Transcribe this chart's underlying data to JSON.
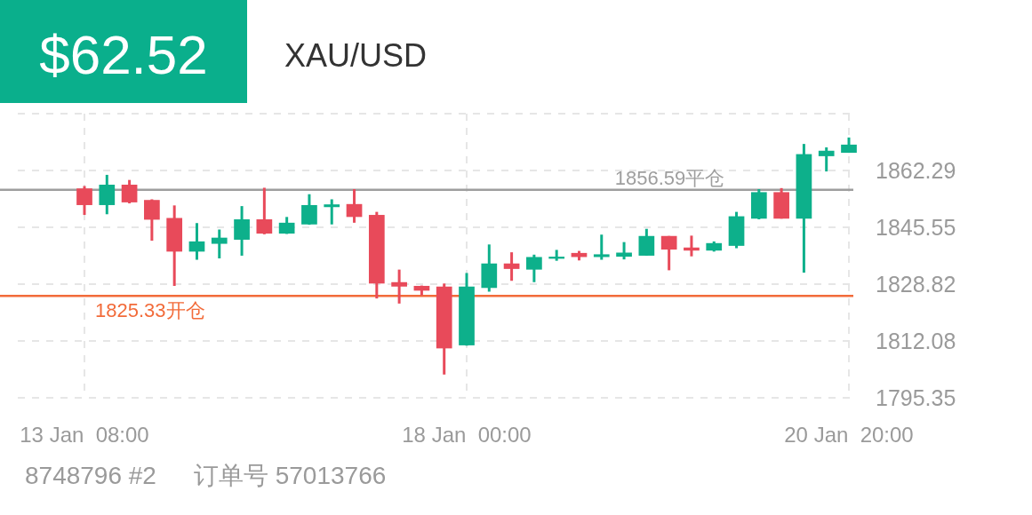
{
  "chart_data": {
    "type": "candlestick",
    "title": "XAU/USD",
    "annotations": [
      "$62.52",
      "8748796 #2",
      "订单号 57013766"
    ],
    "categories": [
      "13 Jan  08:00",
      null,
      null,
      null,
      null,
      null,
      null,
      null,
      null,
      null,
      null,
      null,
      null,
      null,
      null,
      null,
      null,
      "18 Jan  00:00",
      null,
      null,
      null,
      null,
      null,
      null,
      null,
      null,
      null,
      null,
      null,
      null,
      null,
      null,
      null,
      null,
      "20 Jan  20:00"
    ],
    "ohlc": [
      [
        1857.0,
        1857.7,
        1849.2,
        1852.1
      ],
      [
        1852.1,
        1861.0,
        1849.4,
        1858.1
      ],
      [
        1858.1,
        1859.5,
        1852.6,
        1852.9
      ],
      [
        1853.6,
        1853.8,
        1841.6,
        1847.8
      ],
      [
        1848.3,
        1852.0,
        1828.3,
        1838.4
      ],
      [
        1838.4,
        1846.8,
        1836.0,
        1841.4
      ],
      [
        1840.7,
        1844.9,
        1836.4,
        1842.5
      ],
      [
        1841.9,
        1851.8,
        1837.2,
        1847.9
      ],
      [
        1847.9,
        1857.2,
        1843.5,
        1843.7
      ],
      [
        1843.7,
        1848.6,
        1843.6,
        1846.9
      ],
      [
        1846.4,
        1855.3,
        1846.3,
        1852.1
      ],
      [
        1851.5,
        1853.8,
        1846.4,
        1852.3
      ],
      [
        1852.4,
        1856.8,
        1846.9,
        1848.6
      ],
      [
        1849.2,
        1850.1,
        1824.6,
        1829.0
      ],
      [
        1829.4,
        1833.1,
        1823.1,
        1828.1
      ],
      [
        1828.3,
        1828.4,
        1825.5,
        1826.9
      ],
      [
        1828.1,
        1829.0,
        1802.2,
        1809.9
      ],
      [
        1810.8,
        1832.1,
        1810.7,
        1828.1
      ],
      [
        1827.7,
        1840.5,
        1826.6,
        1834.9
      ],
      [
        1834.9,
        1838.2,
        1829.8,
        1833.3
      ],
      [
        1833.1,
        1837.5,
        1829.4,
        1836.8
      ],
      [
        1836.3,
        1838.9,
        1835.7,
        1836.9
      ],
      [
        1838.0,
        1838.6,
        1835.8,
        1836.8
      ],
      [
        1836.8,
        1843.4,
        1836.0,
        1837.6
      ],
      [
        1836.9,
        1841.2,
        1836.1,
        1838.1
      ],
      [
        1837.2,
        1845.1,
        1837.2,
        1843.0
      ],
      [
        1843.0,
        1843.0,
        1832.9,
        1839.0
      ],
      [
        1839.6,
        1843.1,
        1837.0,
        1838.7
      ],
      [
        1838.7,
        1841.4,
        1838.4,
        1840.9
      ],
      [
        1840.1,
        1850.1,
        1839.4,
        1848.8
      ],
      [
        1848.1,
        1856.8,
        1847.9,
        1855.9
      ],
      [
        1855.9,
        1857.1,
        1848.1,
        1848.1
      ],
      [
        1848.1,
        1870.1,
        1832.2,
        1867.1
      ],
      [
        1866.5,
        1869.1,
        1862.0,
        1868.1
      ],
      [
        1867.5,
        1872.0,
        1867.5,
        1869.9
      ]
    ],
    "colors": [
      "#e84a5a",
      "#0db08b",
      "#e84a5a",
      "#e84a5a",
      "#e84a5a",
      "#0db08b",
      "#0db08b",
      "#0db08b",
      "#e84a5a",
      "#0db08b",
      "#0db08b",
      "#0db08b",
      "#e84a5a",
      "#e84a5a",
      "#e84a5a",
      "#e84a5a",
      "#e84a5a",
      "#0db08b",
      "#0db08b",
      "#e84a5a",
      "#0db08b",
      "#0db08b",
      "#e84a5a",
      "#0db08b",
      "#0db08b",
      "#0db08b",
      "#e84a5a",
      "#e84a5a",
      "#0db08b",
      "#0db08b",
      "#0db08b",
      "#e84a5a",
      "#0db08b",
      "#0db08b",
      "#0db08b"
    ],
    "ylim": [
      1795.35,
      1879.02
    ],
    "yticks": [
      1795.35,
      1812.08,
      1828.82,
      1845.55,
      1862.29,
      {
        "value": 1879.02,
        "label": null
      }
    ],
    "grid": true,
    "ref_lines": [
      {
        "axis": "y",
        "value": 1856.59,
        "label": "1856.59平仓",
        "color": "#9e9e9e"
      },
      {
        "axis": "y",
        "value": 1825.33,
        "label": "1825.33开仓",
        "color": "#f26b3a"
      }
    ]
  }
}
